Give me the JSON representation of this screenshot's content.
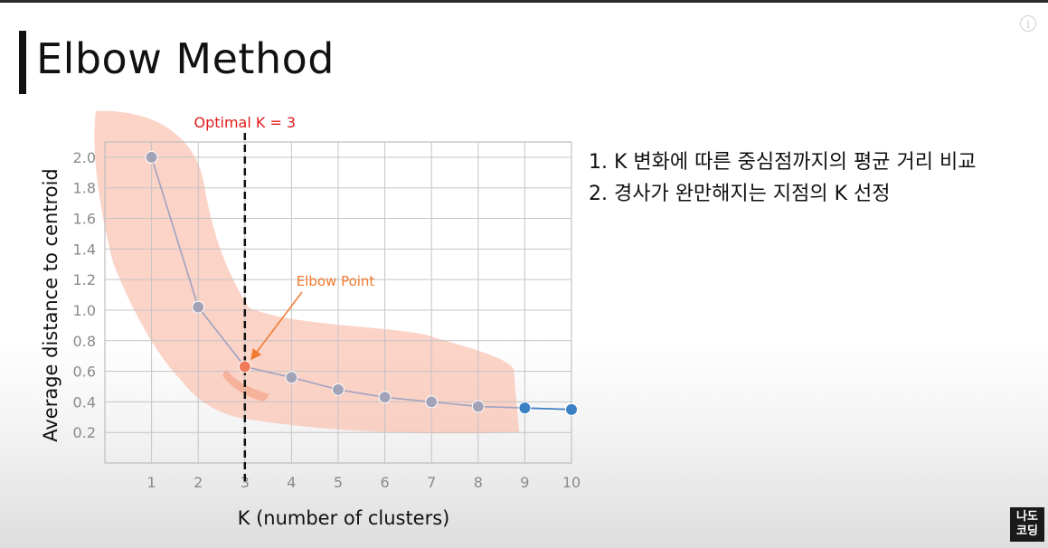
{
  "page": {
    "title": "Elbow Method",
    "notes": [
      "1. K 변화에 따른 중심점까지의 평균 거리 비교",
      "2. 경사가 완만해지는 지점의 K 선정"
    ],
    "logo_text": "나도 코딩",
    "info_icon": "i"
  },
  "chart_data": {
    "type": "line",
    "x": [
      1,
      2,
      3,
      4,
      5,
      6,
      7,
      8,
      9,
      10
    ],
    "y": [
      2.0,
      1.02,
      0.63,
      0.56,
      0.48,
      0.43,
      0.4,
      0.37,
      0.36,
      0.35
    ],
    "xlabel": "K (number of clusters)",
    "ylabel": "Average distance to centroid",
    "xticks": [
      "1",
      "2",
      "3",
      "4",
      "5",
      "6",
      "7",
      "8",
      "9",
      "10"
    ],
    "yticks": [
      "0.2",
      "0.4",
      "0.6",
      "0.8",
      "1.0",
      "1.2",
      "1.4",
      "1.6",
      "1.8",
      "2.0"
    ],
    "xlim": [
      0,
      10
    ],
    "ylim": [
      0,
      2.1
    ],
    "grid": true,
    "optimal_k": 3,
    "optimal_label": "Optimal K = 3",
    "elbow_label": "Elbow Point",
    "colors": {
      "point": "#a3a3b8",
      "line": "#a0a3c0",
      "elbow": "#f07a5a",
      "tail_points": "#3b7fc4",
      "highlight": "#f9c4b4",
      "optimal_line": "#111111",
      "optimal_text": "#e11a1a",
      "elbow_text": "#f07a2e"
    }
  }
}
